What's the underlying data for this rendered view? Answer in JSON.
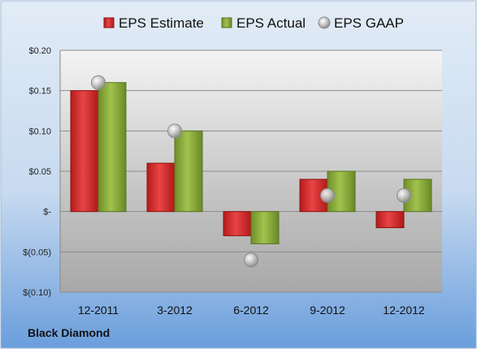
{
  "company": "Black Diamond",
  "colors": {
    "estimate": "#d42a2a",
    "actual": "#8aaa3c",
    "gaap": "#a9a9a9",
    "frame_top": "#d6e4f2",
    "frame_bottom": "#6fa0dc"
  },
  "chart_data": {
    "type": "bar",
    "categories": [
      "12-2011",
      "3-2012",
      "6-2012",
      "9-2012",
      "12-2012"
    ],
    "series": [
      {
        "name": "EPS Estimate",
        "kind": "bar",
        "values": [
          0.15,
          0.06,
          -0.03,
          0.04,
          -0.02
        ]
      },
      {
        "name": "EPS Actual",
        "kind": "bar",
        "values": [
          0.16,
          0.1,
          -0.04,
          0.05,
          0.04
        ]
      },
      {
        "name": "EPS GAAP",
        "kind": "marker",
        "values": [
          0.16,
          0.1,
          -0.06,
          0.02,
          0.02
        ]
      }
    ],
    "ylim": [
      -0.1,
      0.2
    ],
    "yticks": [
      0.2,
      0.15,
      0.1,
      0.05,
      0.0,
      -0.05,
      -0.1
    ],
    "ytick_labels": [
      "$0.20",
      "$0.15",
      "$0.10",
      "$0.05",
      "$-",
      "$(0.05)",
      "$(0.10)"
    ],
    "legend": {
      "position": "top",
      "labels": [
        "EPS Estimate",
        "EPS Actual",
        "EPS GAAP"
      ]
    },
    "grid": true
  }
}
